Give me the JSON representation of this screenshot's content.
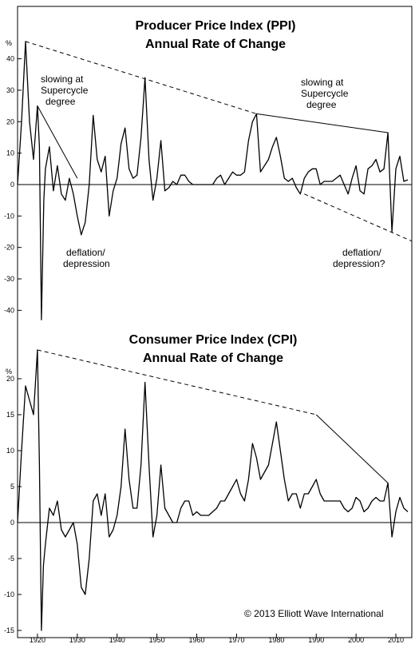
{
  "chart_data": [
    {
      "type": "line",
      "title": "Producer Price Index (PPI)",
      "subtitle": "Annual Rate of Change",
      "unit_label": "%",
      "ylim": [
        -46,
        47
      ],
      "xlim": [
        1915,
        2014
      ],
      "y_ticks": [
        40,
        30,
        20,
        10,
        0,
        -10,
        -20,
        -30,
        -40
      ],
      "annotations": [
        {
          "lines": [
            "slowing at",
            "Supercycle",
            "degree"
          ]
        },
        {
          "lines": [
            "slowing at",
            "Supercycle",
            "degree"
          ]
        },
        {
          "lines": [
            "deflation/",
            "depression"
          ]
        },
        {
          "lines": [
            "deflation/",
            "depression?"
          ]
        }
      ],
      "trendlines": [
        {
          "style": "dashed",
          "points": [
            [
              1917,
              45.5
            ],
            [
              1975,
              22.5
            ]
          ]
        },
        {
          "style": "solid",
          "points": [
            [
              1975,
              22.5
            ],
            [
              2008,
              16.5
            ]
          ]
        },
        {
          "style": "solid",
          "points": [
            [
              1920,
              25
            ],
            [
              1930,
              2
            ]
          ]
        },
        {
          "style": "dashed",
          "points": [
            [
              1987,
              -3
            ],
            [
              2014,
              -18
            ]
          ]
        }
      ],
      "series": [
        {
          "points": [
            [
              1915,
              0
            ],
            [
              1916,
              20
            ],
            [
              1917,
              45.5
            ],
            [
              1918,
              20
            ],
            [
              1919,
              8
            ],
            [
              1920,
              25
            ],
            [
              1920.5,
              12
            ],
            [
              1921,
              -43
            ],
            [
              1921.6,
              -5
            ],
            [
              1922,
              5
            ],
            [
              1923,
              12
            ],
            [
              1924,
              -2
            ],
            [
              1925,
              6
            ],
            [
              1926,
              -3
            ],
            [
              1927,
              -5
            ],
            [
              1928,
              2
            ],
            [
              1929,
              -3
            ],
            [
              1930,
              -10
            ],
            [
              1931,
              -16
            ],
            [
              1932,
              -12
            ],
            [
              1933,
              0
            ],
            [
              1934,
              22
            ],
            [
              1935,
              8
            ],
            [
              1936,
              4
            ],
            [
              1937,
              9
            ],
            [
              1938,
              -10
            ],
            [
              1939,
              -2
            ],
            [
              1940,
              2
            ],
            [
              1941,
              13
            ],
            [
              1942,
              18
            ],
            [
              1943,
              5
            ],
            [
              1944,
              2
            ],
            [
              1945,
              3
            ],
            [
              1946,
              15
            ],
            [
              1947,
              34
            ],
            [
              1948,
              8
            ],
            [
              1949,
              -5
            ],
            [
              1950,
              2
            ],
            [
              1951,
              14
            ],
            [
              1952,
              -2
            ],
            [
              1953,
              -1
            ],
            [
              1954,
              1
            ],
            [
              1955,
              0
            ],
            [
              1956,
              3
            ],
            [
              1957,
              3
            ],
            [
              1958,
              1
            ],
            [
              1959,
              0
            ],
            [
              1960,
              0
            ],
            [
              1961,
              0
            ],
            [
              1962,
              0
            ],
            [
              1963,
              0
            ],
            [
              1964,
              0
            ],
            [
              1965,
              2
            ],
            [
              1966,
              3
            ],
            [
              1967,
              0
            ],
            [
              1968,
              2
            ],
            [
              1969,
              4
            ],
            [
              1970,
              3
            ],
            [
              1971,
              3
            ],
            [
              1972,
              4
            ],
            [
              1973,
              14
            ],
            [
              1974,
              20
            ],
            [
              1975,
              22.5
            ],
            [
              1976,
              4
            ],
            [
              1977,
              6
            ],
            [
              1978,
              8
            ],
            [
              1979,
              12
            ],
            [
              1980,
              15
            ],
            [
              1981,
              9
            ],
            [
              1982,
              2
            ],
            [
              1983,
              1
            ],
            [
              1984,
              2
            ],
            [
              1985,
              -1
            ],
            [
              1986,
              -3
            ],
            [
              1987,
              2
            ],
            [
              1988,
              4
            ],
            [
              1989,
              5
            ],
            [
              1990,
              5
            ],
            [
              1991,
              0
            ],
            [
              1992,
              1
            ],
            [
              1993,
              1
            ],
            [
              1994,
              1
            ],
            [
              1995,
              2
            ],
            [
              1996,
              3
            ],
            [
              1997,
              0
            ],
            [
              1998,
              -3
            ],
            [
              1999,
              2
            ],
            [
              2000,
              6
            ],
            [
              2001,
              -2
            ],
            [
              2002,
              -3
            ],
            [
              2003,
              5
            ],
            [
              2004,
              6
            ],
            [
              2005,
              8
            ],
            [
              2006,
              4
            ],
            [
              2007,
              5
            ],
            [
              2008,
              16.5
            ],
            [
              2009,
              -15
            ],
            [
              2010,
              5
            ],
            [
              2011,
              9
            ],
            [
              2012,
              1
            ],
            [
              2013,
              1.5
            ]
          ]
        }
      ]
    },
    {
      "type": "line",
      "title": "Consumer Price Index (CPI)",
      "subtitle": "Annual Rate of Change",
      "unit_label": "%",
      "ylim": [
        -16,
        24
      ],
      "xlim": [
        1915,
        2014
      ],
      "y_ticks": [
        20,
        15,
        10,
        5,
        0,
        -5,
        -10,
        -15
      ],
      "x_ticks": [
        1920,
        1930,
        1940,
        1950,
        1960,
        1970,
        1980,
        1990,
        2000,
        2010
      ],
      "trendlines": [
        {
          "style": "dashed",
          "points": [
            [
              1920,
              24
            ],
            [
              1990,
              15
            ]
          ]
        },
        {
          "style": "solid",
          "points": [
            [
              1990,
              15
            ],
            [
              2008,
              5.5
            ]
          ]
        }
      ],
      "series": [
        {
          "points": [
            [
              1915,
              0
            ],
            [
              1916,
              10
            ],
            [
              1917,
              19
            ],
            [
              1918,
              17
            ],
            [
              1919,
              15
            ],
            [
              1920,
              24
            ],
            [
              1920.5,
              8
            ],
            [
              1921,
              -15
            ],
            [
              1921.5,
              -6
            ],
            [
              1922,
              -3
            ],
            [
              1923,
              2
            ],
            [
              1924,
              1
            ],
            [
              1925,
              3
            ],
            [
              1926,
              -1
            ],
            [
              1927,
              -2
            ],
            [
              1928,
              -1
            ],
            [
              1929,
              0
            ],
            [
              1930,
              -3
            ],
            [
              1931,
              -9
            ],
            [
              1932,
              -10
            ],
            [
              1933,
              -5
            ],
            [
              1934,
              3
            ],
            [
              1935,
              4
            ],
            [
              1936,
              1
            ],
            [
              1937,
              4
            ],
            [
              1938,
              -2
            ],
            [
              1939,
              -1
            ],
            [
              1940,
              1
            ],
            [
              1941,
              5
            ],
            [
              1942,
              13
            ],
            [
              1943,
              6
            ],
            [
              1944,
              2
            ],
            [
              1945,
              2
            ],
            [
              1946,
              8
            ],
            [
              1947,
              19.5
            ],
            [
              1948,
              8
            ],
            [
              1949,
              -2
            ],
            [
              1950,
              1
            ],
            [
              1951,
              8
            ],
            [
              1952,
              2
            ],
            [
              1953,
              1
            ],
            [
              1954,
              0
            ],
            [
              1955,
              0
            ],
            [
              1956,
              2
            ],
            [
              1957,
              3
            ],
            [
              1958,
              3
            ],
            [
              1959,
              1
            ],
            [
              1960,
              1.5
            ],
            [
              1961,
              1
            ],
            [
              1962,
              1
            ],
            [
              1963,
              1
            ],
            [
              1964,
              1.5
            ],
            [
              1965,
              2
            ],
            [
              1966,
              3
            ],
            [
              1967,
              3
            ],
            [
              1968,
              4
            ],
            [
              1969,
              5
            ],
            [
              1970,
              6
            ],
            [
              1971,
              4
            ],
            [
              1972,
              3
            ],
            [
              1973,
              6
            ],
            [
              1974,
              11
            ],
            [
              1975,
              9
            ],
            [
              1976,
              6
            ],
            [
              1977,
              7
            ],
            [
              1978,
              8
            ],
            [
              1979,
              11
            ],
            [
              1980,
              14
            ],
            [
              1981,
              10
            ],
            [
              1982,
              6
            ],
            [
              1983,
              3
            ],
            [
              1984,
              4
            ],
            [
              1985,
              4
            ],
            [
              1986,
              2
            ],
            [
              1987,
              4
            ],
            [
              1988,
              4
            ],
            [
              1989,
              5
            ],
            [
              1990,
              6
            ],
            [
              1991,
              4
            ],
            [
              1992,
              3
            ],
            [
              1993,
              3
            ],
            [
              1994,
              3
            ],
            [
              1995,
              3
            ],
            [
              1996,
              3
            ],
            [
              1997,
              2
            ],
            [
              1998,
              1.5
            ],
            [
              1999,
              2
            ],
            [
              2000,
              3.5
            ],
            [
              2001,
              3
            ],
            [
              2002,
              1.5
            ],
            [
              2003,
              2
            ],
            [
              2004,
              3
            ],
            [
              2005,
              3.5
            ],
            [
              2006,
              3
            ],
            [
              2007,
              3
            ],
            [
              2008,
              5.5
            ],
            [
              2009,
              -2
            ],
            [
              2010,
              1.5
            ],
            [
              2011,
              3.5
            ],
            [
              2012,
              2
            ],
            [
              2013,
              1.5
            ]
          ]
        }
      ]
    }
  ],
  "copyright": "© 2013 Elliott Wave International"
}
